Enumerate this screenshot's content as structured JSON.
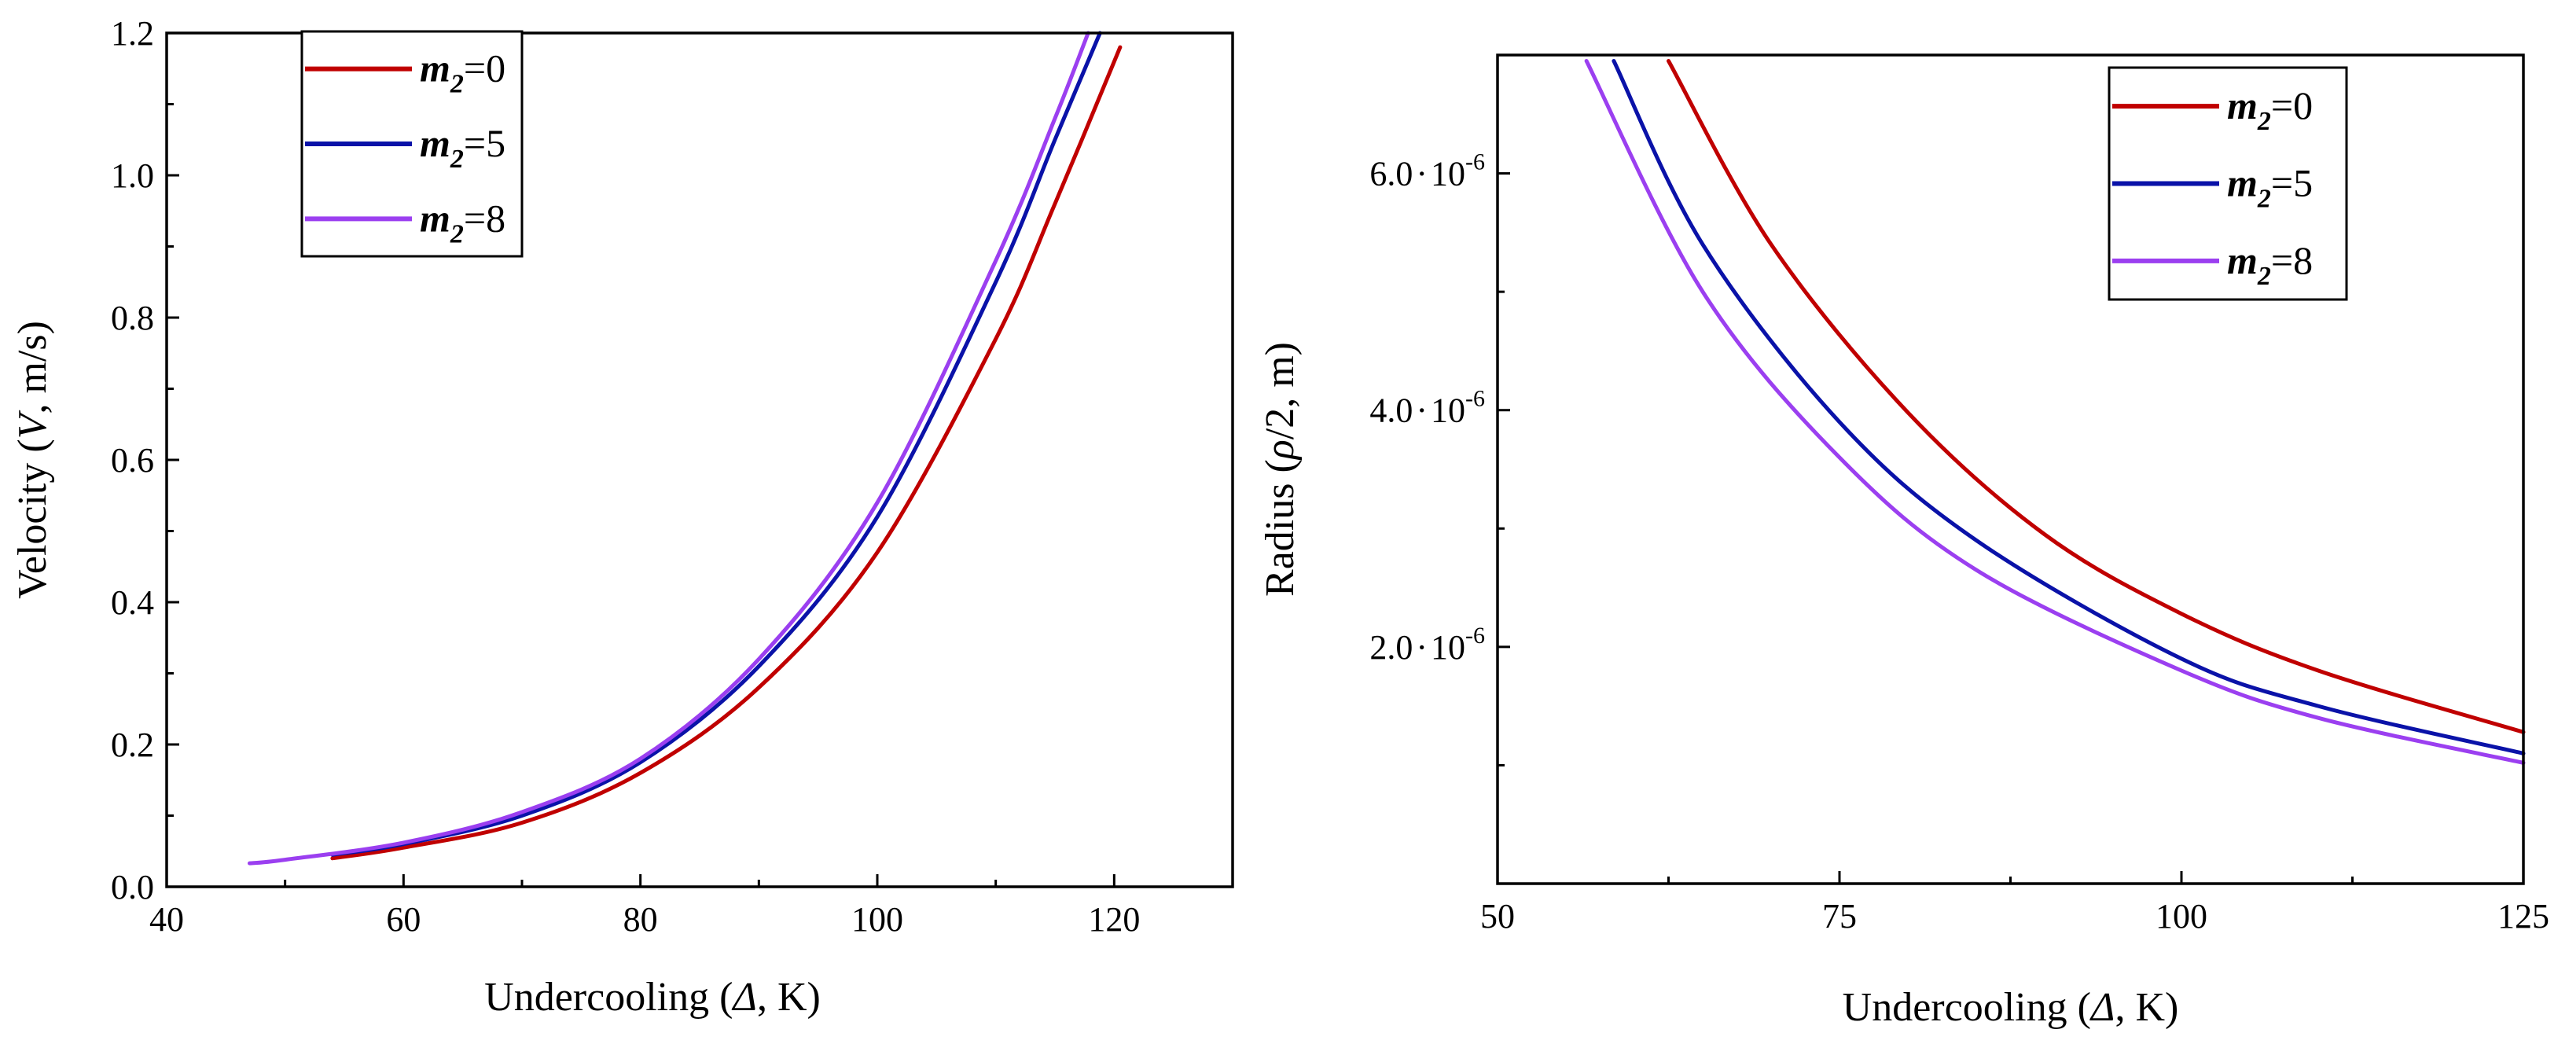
{
  "chart_data": [
    {
      "type": "line",
      "xlabel_prefix": "Undercooling (",
      "xlabel_symbol": "Δ",
      "xlabel_suffix": ", K)",
      "ylabel_prefix": "Velocity (",
      "ylabel_symbol": "V",
      "ylabel_suffix": ", m/s)",
      "xlim": [
        40,
        130
      ],
      "ylim": [
        0,
        1.2
      ],
      "xticks": [
        40,
        60,
        80,
        100,
        120
      ],
      "xtick_labels": [
        "40",
        "60",
        "80",
        "100",
        "120"
      ],
      "yticks": [
        0,
        0.2,
        0.4,
        0.6,
        0.8,
        1.0,
        1.2
      ],
      "ytick_labels": [
        "0.0",
        "0.2",
        "0.4",
        "0.6",
        "0.8",
        "1.0",
        "1.2"
      ],
      "legend_position": "top-left",
      "series": [
        {
          "name": "m2=0",
          "label_var": "m",
          "label_sub": "2",
          "label_val": "=0",
          "color": "#c00000",
          "x": [
            54,
            60,
            70,
            80,
            90,
            100,
            110,
            115,
            120.5
          ],
          "y": [
            0.04,
            0.055,
            0.09,
            0.16,
            0.28,
            0.47,
            0.77,
            0.96,
            1.18
          ]
        },
        {
          "name": "m2=5",
          "label_var": "m",
          "label_sub": "2",
          "label_val": "=5",
          "color": "#0a12a8",
          "x": [
            54,
            60,
            70,
            80,
            90,
            100,
            110,
            115,
            118.8
          ],
          "y": [
            0.045,
            0.06,
            0.1,
            0.175,
            0.31,
            0.52,
            0.85,
            1.05,
            1.2
          ]
        },
        {
          "name": "m2=8",
          "label_var": "m",
          "label_sub": "2",
          "label_val": "=8",
          "color": "#9b3ff0",
          "x": [
            47,
            50,
            60,
            70,
            80,
            90,
            100,
            110,
            115,
            117.8
          ],
          "y": [
            0.033,
            0.038,
            0.062,
            0.105,
            0.18,
            0.32,
            0.54,
            0.88,
            1.08,
            1.2
          ]
        }
      ]
    },
    {
      "type": "line",
      "xlabel_prefix": "Undercooling (",
      "xlabel_symbol": "Δ",
      "xlabel_suffix": ", K)",
      "ylabel_prefix": "Radius (",
      "ylabel_symbol": "ρ",
      "ylabel_suffix": "/2, m)",
      "xlim": [
        50,
        125
      ],
      "ylim": [
        0,
        7e-06
      ],
      "xticks": [
        50,
        75,
        100,
        125
      ],
      "xtick_labels": [
        "50",
        "75",
        "100",
        "125"
      ],
      "yticks": [
        2e-06,
        4e-06,
        6e-06
      ],
      "ytick_labels": [
        {
          "mantissa": "2.0",
          "dot": "·",
          "base": "10",
          "exp": "-6"
        },
        {
          "mantissa": "4.0",
          "dot": "·",
          "base": "10",
          "exp": "-6"
        },
        {
          "mantissa": "6.0",
          "dot": "·",
          "base": "10",
          "exp": "-6"
        }
      ],
      "legend_position": "top-right",
      "series": [
        {
          "name": "m2=0",
          "label_var": "m",
          "label_sub": "2",
          "label_val": "=0",
          "color": "#c00000",
          "x": [
            62.5,
            70,
            80,
            90,
            100,
            110,
            125
          ],
          "y": [
            6.95e-06,
            5.4e-06,
            3.98e-06,
            2.95e-06,
            2.28e-06,
            1.8e-06,
            1.28e-06
          ]
        },
        {
          "name": "m2=5",
          "label_var": "m",
          "label_sub": "2",
          "label_val": "=5",
          "color": "#0a12a8",
          "x": [
            58.5,
            65,
            75,
            85,
            100,
            110,
            125
          ],
          "y": [
            6.95e-06,
            5.4e-06,
            3.9e-06,
            2.9e-06,
            1.9e-06,
            1.5e-06,
            1.1e-06
          ]
        },
        {
          "name": "m2=8",
          "label_var": "m",
          "label_sub": "2",
          "label_val": "=8",
          "color": "#9b3ff0",
          "x": [
            56.5,
            65,
            75,
            85,
            100,
            110,
            125
          ],
          "y": [
            6.95e-06,
            5e-06,
            3.6e-06,
            2.65e-06,
            1.8e-06,
            1.4e-06,
            1.02e-06
          ]
        }
      ]
    }
  ]
}
